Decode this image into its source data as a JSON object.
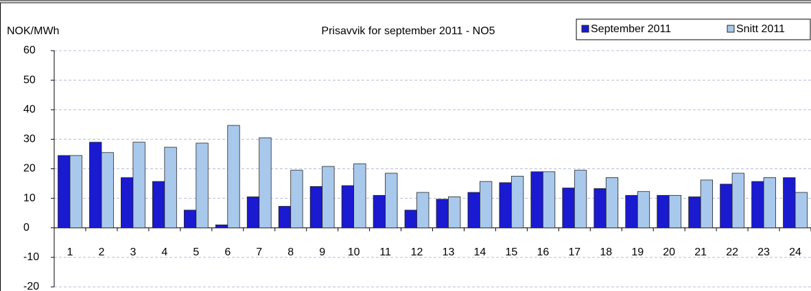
{
  "chart_data": {
    "type": "bar",
    "title": "Prisavvik for september 2011 - NO5",
    "y_label": "NOK/MWh",
    "categories": [
      "1",
      "2",
      "3",
      "4",
      "5",
      "6",
      "7",
      "8",
      "9",
      "10",
      "11",
      "12",
      "13",
      "14",
      "15",
      "16",
      "17",
      "18",
      "19",
      "20",
      "21",
      "22",
      "23",
      "24"
    ],
    "series": [
      {
        "name": "September 2011",
        "color": "#1a1ad0",
        "values": [
          24.5,
          29,
          17,
          15.7,
          6,
          1,
          10.5,
          7.3,
          14,
          14.3,
          11,
          6,
          9.7,
          12,
          15.3,
          19,
          13.5,
          13.3,
          11,
          11,
          10.5,
          14.8,
          15.7,
          17
        ]
      },
      {
        "name": "Snitt 2011",
        "color": "#a9c9ec",
        "values": [
          24.5,
          25.5,
          29,
          27.3,
          28.7,
          34.7,
          30.5,
          19.5,
          20.8,
          21.7,
          18.5,
          12,
          10.5,
          15.7,
          17.5,
          19,
          19.5,
          17,
          12.3,
          11,
          16.2,
          18.5,
          17,
          12
        ]
      }
    ],
    "ylim": [
      -20,
      60
    ],
    "yticks": [
      60,
      50,
      40,
      30,
      20,
      10,
      0,
      -10,
      -20
    ],
    "grid": true
  }
}
